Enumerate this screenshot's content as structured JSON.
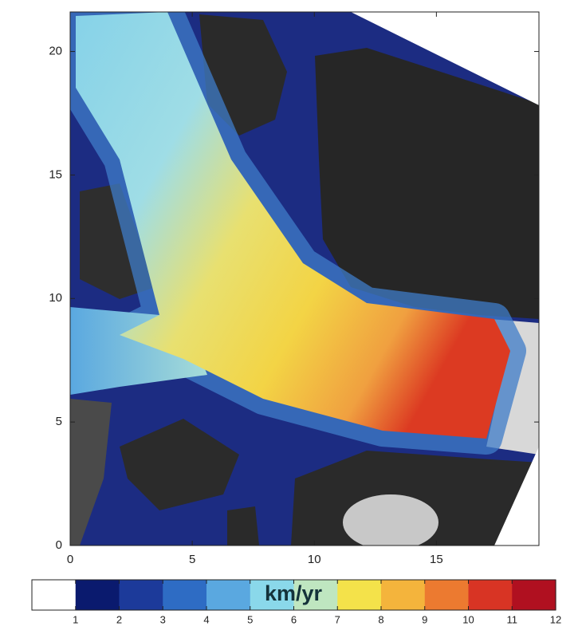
{
  "chart_data": {
    "type": "image",
    "xlim": [
      0,
      19.2
    ],
    "ylim": [
      0,
      21.6
    ],
    "xticks": [
      0,
      5,
      10,
      15
    ],
    "yticks": [
      0,
      5,
      10,
      15,
      20
    ],
    "colorbar": {
      "label": "km/yr",
      "lim": [
        0,
        12
      ],
      "ticks": [
        1,
        2,
        3,
        4,
        5,
        6,
        7,
        8,
        9,
        10,
        11,
        12
      ],
      "colormap": [
        "#ffffff",
        "#0a1a6e",
        "#1c3a9a",
        "#2e6cc4",
        "#5aa8e0",
        "#8ad8ea",
        "#bfe6c0",
        "#f4e24a",
        "#f4b43c",
        "#ec7a30",
        "#d83424",
        "#b01020"
      ]
    }
  }
}
